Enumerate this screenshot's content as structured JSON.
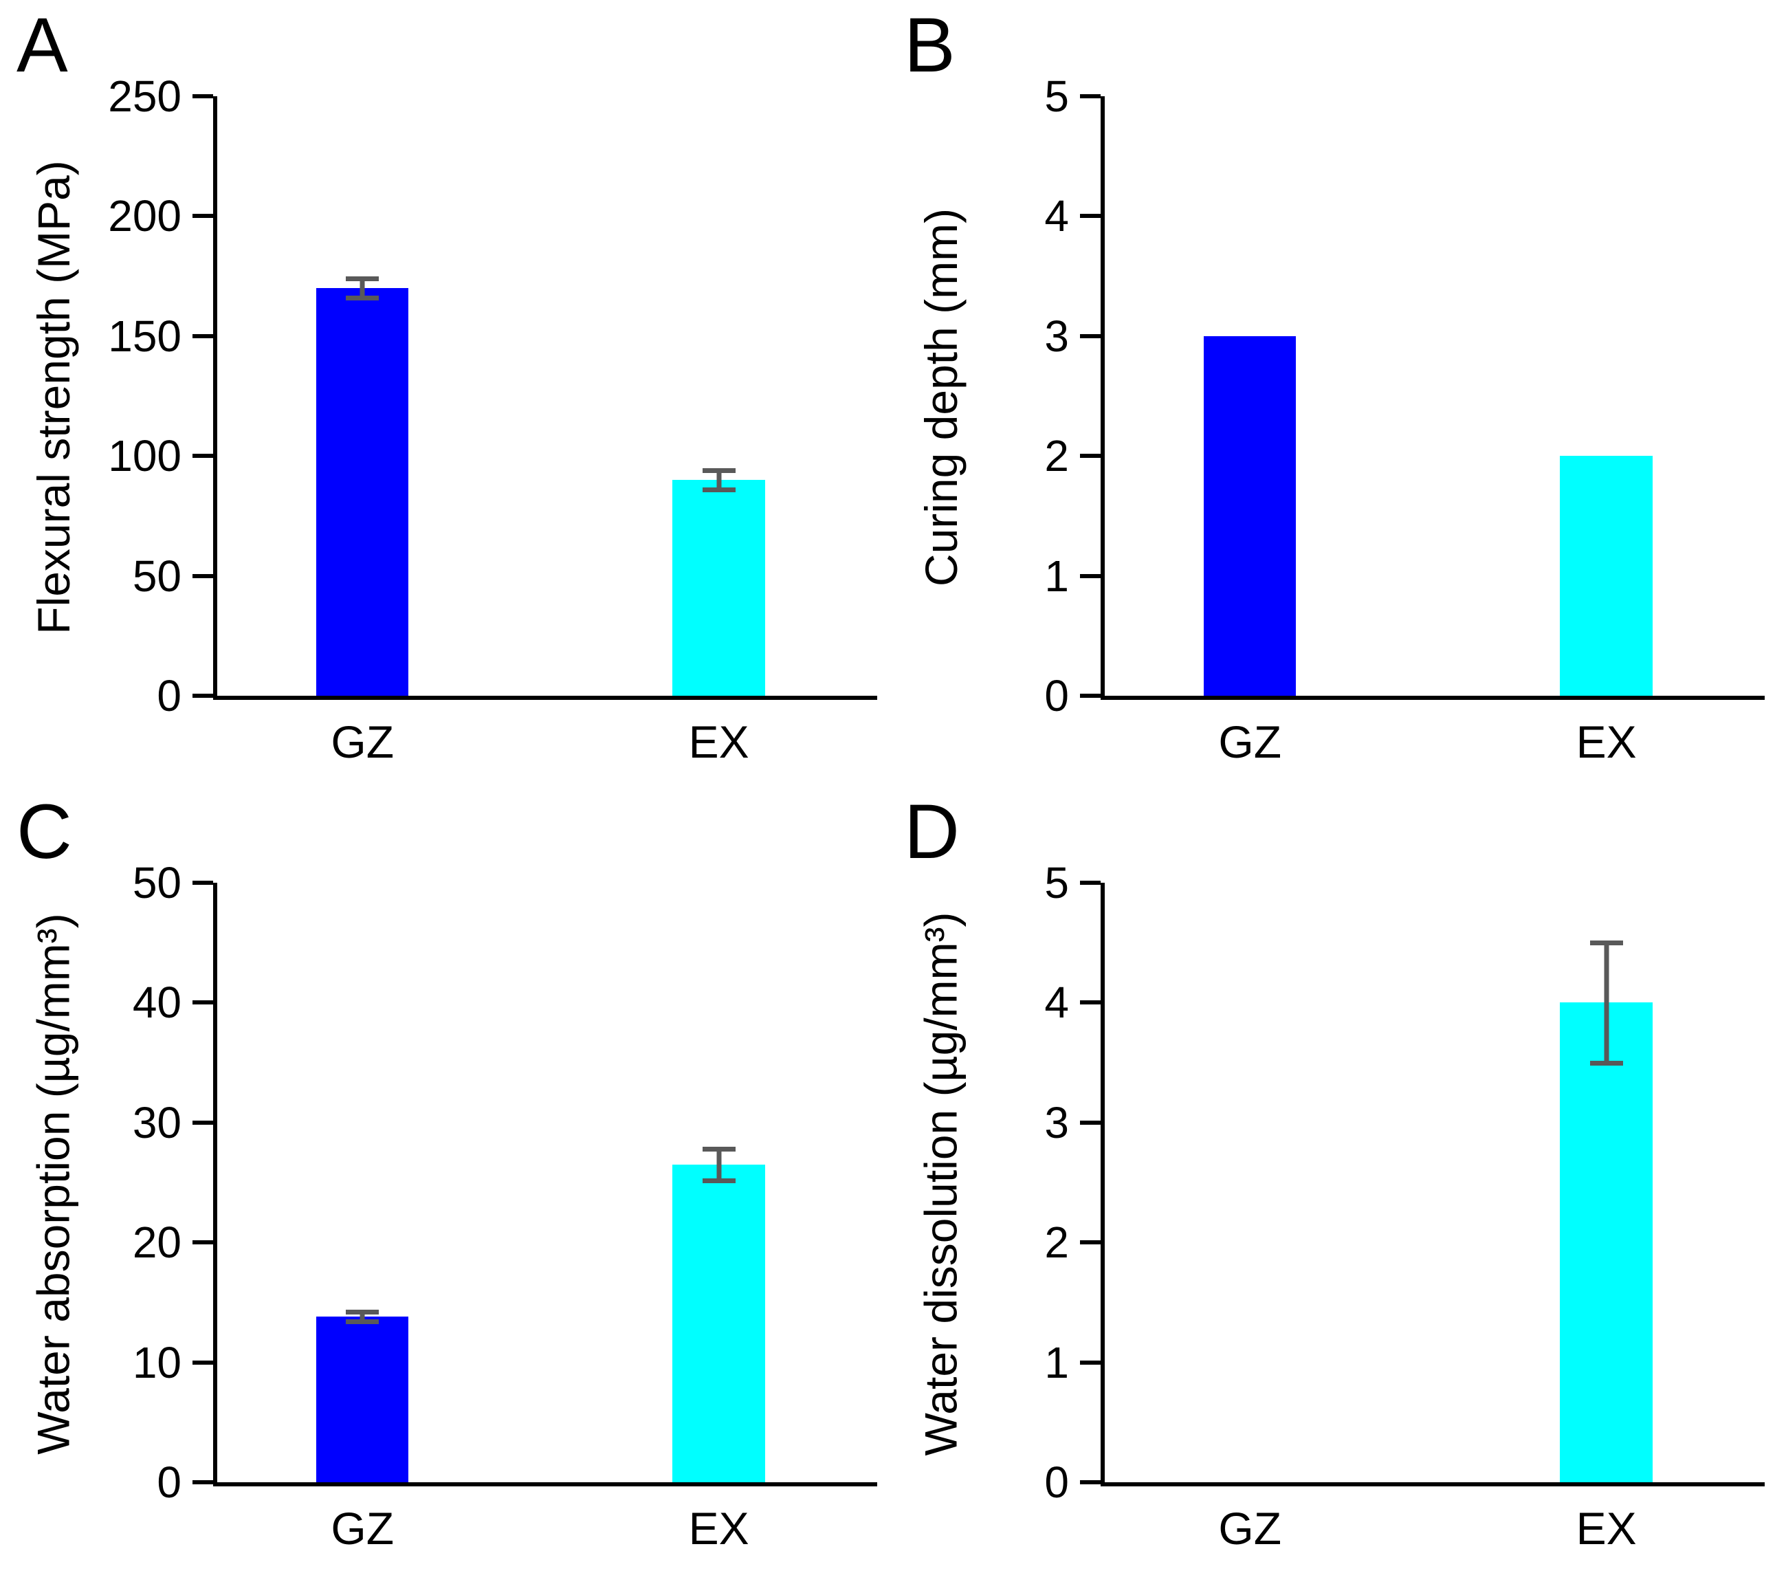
{
  "figure": {
    "background": "#ffffff",
    "text_color": "#000000",
    "axis_color": "#000000"
  },
  "chart_data": [
    {
      "type": "bar",
      "panel_label": "A",
      "y_title": "Flexural strength (MPa)",
      "categories": [
        "GZ",
        "EX"
      ],
      "values": [
        170,
        90
      ],
      "errors": [
        4,
        4
      ],
      "bar_colors": [
        "#0000ff",
        "#00ffff"
      ],
      "error_color": "#595959",
      "ylim": [
        0,
        250
      ],
      "y_ticks": [
        0,
        50,
        100,
        150,
        200,
        250
      ],
      "grid": false,
      "legend": false
    },
    {
      "type": "bar",
      "panel_label": "B",
      "y_title": "Curing depth (mm)",
      "categories": [
        "GZ",
        "EX"
      ],
      "values": [
        3,
        2
      ],
      "errors": [
        0,
        0
      ],
      "bar_colors": [
        "#0000ff",
        "#00ffff"
      ],
      "error_color": "#595959",
      "ylim": [
        0,
        5
      ],
      "y_ticks": [
        0,
        1,
        2,
        3,
        4,
        5
      ],
      "grid": false,
      "legend": false
    },
    {
      "type": "bar",
      "panel_label": "C",
      "y_title": "Water absorption (µg/mm³)",
      "categories": [
        "GZ",
        "EX"
      ],
      "values": [
        13.8,
        26.5
      ],
      "errors": [
        0.4,
        1.3
      ],
      "bar_colors": [
        "#0000ff",
        "#00ffff"
      ],
      "error_color": "#595959",
      "ylim": [
        0,
        50
      ],
      "y_ticks": [
        0,
        10,
        20,
        30,
        40,
        50
      ],
      "grid": false,
      "legend": false
    },
    {
      "type": "bar",
      "panel_label": "D",
      "y_title": "Water dissolution (µg/mm³)",
      "categories": [
        "GZ",
        "EX"
      ],
      "values": [
        0,
        4
      ],
      "errors": [
        0,
        0.5
      ],
      "bar_colors": [
        "#0000ff",
        "#00ffff"
      ],
      "error_color": "#595959",
      "ylim": [
        0,
        5
      ],
      "y_ticks": [
        0,
        1,
        2,
        3,
        4,
        5
      ],
      "grid": false,
      "legend": false
    }
  ]
}
